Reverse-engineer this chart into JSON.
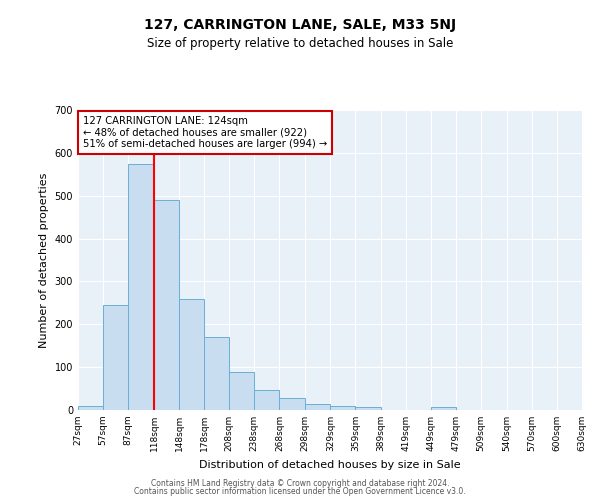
{
  "title": "127, CARRINGTON LANE, SALE, M33 5NJ",
  "subtitle": "Size of property relative to detached houses in Sale",
  "xlabel": "Distribution of detached houses by size in Sale",
  "ylabel": "Number of detached properties",
  "bin_edges": [
    27,
    57,
    87,
    118,
    148,
    178,
    208,
    238,
    268,
    298,
    329,
    359,
    389,
    419,
    449,
    479,
    509,
    540,
    570,
    600,
    630
  ],
  "bar_heights": [
    10,
    245,
    575,
    490,
    260,
    170,
    88,
    47,
    27,
    13,
    10,
    8,
    0,
    0,
    8,
    0,
    0,
    0,
    0,
    0
  ],
  "bar_color": "#c9ddf0",
  "bar_edge_color": "#6baed6",
  "red_line_x": 118,
  "ylim": [
    0,
    700
  ],
  "yticks": [
    0,
    100,
    200,
    300,
    400,
    500,
    600,
    700
  ],
  "annotation_text": "127 CARRINGTON LANE: 124sqm\n← 48% of detached houses are smaller (922)\n51% of semi-detached houses are larger (994) →",
  "annotation_box_facecolor": "#ffffff",
  "annotation_box_edgecolor": "#cc0000",
  "footer_line1": "Contains HM Land Registry data © Crown copyright and database right 2024.",
  "footer_line2": "Contains public sector information licensed under the Open Government Licence v3.0.",
  "fig_facecolor": "#ffffff",
  "plot_bg_color": "#e8f0f8"
}
